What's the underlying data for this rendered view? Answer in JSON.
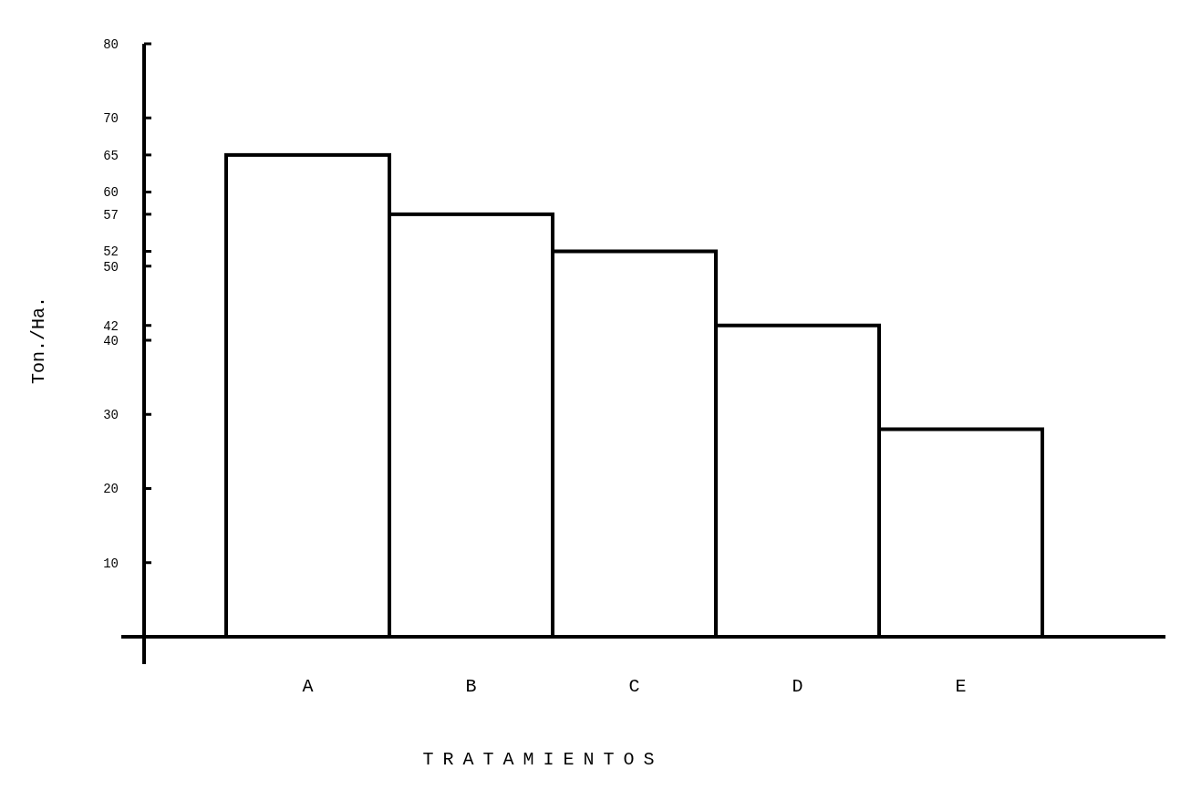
{
  "chart_data": {
    "type": "bar",
    "xlabel": "TRATAMIENTOS",
    "ylabel": "Ton./Ha.",
    "categories": [
      "A",
      "B",
      "C",
      "D",
      "E"
    ],
    "values": [
      65,
      57,
      52,
      42,
      28
    ],
    "color": "#ffffff",
    "ylim": [
      0,
      80
    ],
    "yticks": [
      10,
      20,
      30,
      40,
      42,
      50,
      52,
      57,
      60,
      65,
      70,
      80
    ],
    "grid": false
  }
}
